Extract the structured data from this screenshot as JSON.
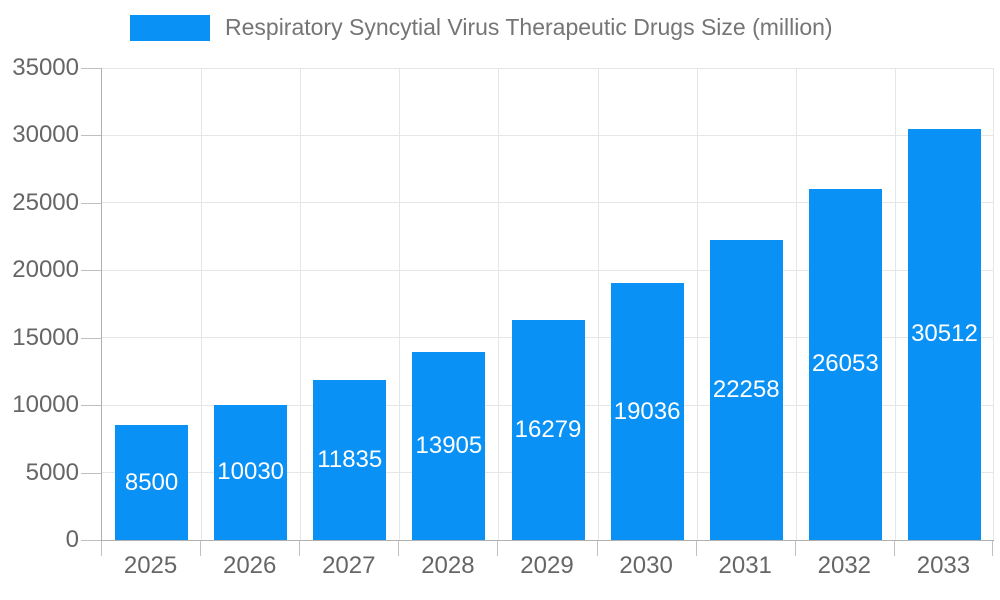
{
  "legend": {
    "label": "Respiratory Syncytial Virus Therapeutic Drugs Size (million)"
  },
  "chart_data": {
    "type": "bar",
    "title": "Respiratory Syncytial Virus Therapeutic Drugs Size (million)",
    "categories": [
      "2025",
      "2026",
      "2027",
      "2028",
      "2029",
      "2030",
      "2031",
      "2032",
      "2033"
    ],
    "values": [
      8500,
      10030,
      11835,
      13905,
      16279,
      19036,
      22258,
      26053,
      30512
    ],
    "data_labels": [
      "8500",
      "10030",
      "11835",
      "13905",
      "16279",
      "19036",
      "22258",
      "26053",
      "30512"
    ],
    "xlabel": "",
    "ylabel": "",
    "ylim": [
      0,
      35000
    ],
    "yticks": [
      0,
      5000,
      10000,
      15000,
      20000,
      25000,
      30000,
      35000
    ],
    "grid": true,
    "legend_position": "top-left",
    "colors": {
      "bar": "#0991f5",
      "grid": "#e6e6e6",
      "axis": "#b0b0b0",
      "tick": "#c0c0c0",
      "tick_label": "#666666",
      "title": "#757575",
      "data_label": "#ffffff",
      "background": "#ffffff"
    }
  }
}
